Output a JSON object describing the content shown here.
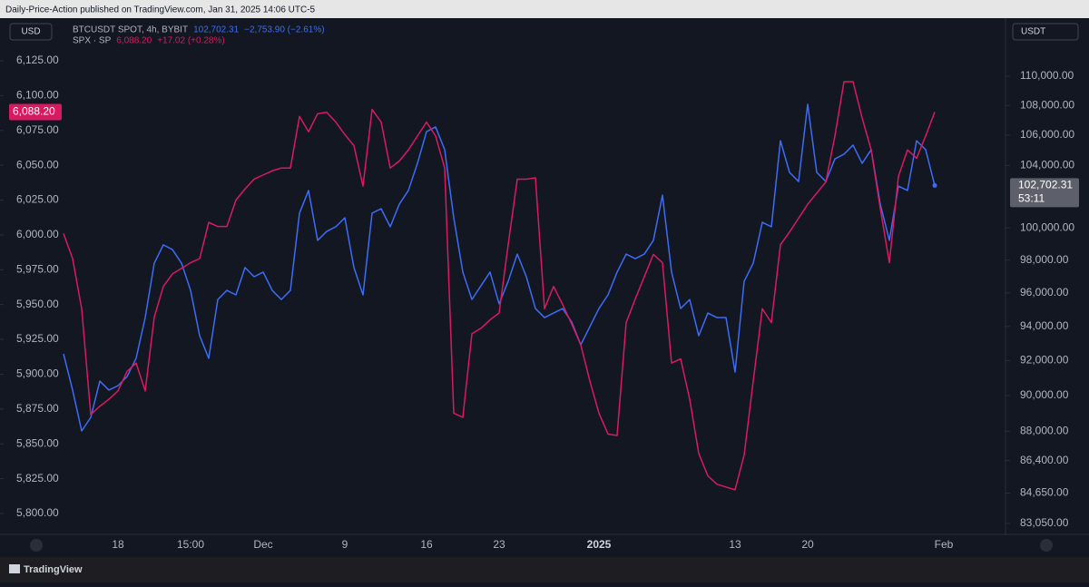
{
  "header": "Daily-Price-Action published on TradingView.com, Jan 31, 2025 14:06 UTC-5",
  "footer": "TradingView",
  "left_unit": "USD",
  "right_unit": "USDT",
  "chart_data": {
    "type": "line",
    "categories": [
      null,
      null,
      null,
      null,
      null,
      null,
      "18",
      null,
      null,
      null,
      null,
      null,
      null,
      null,
      "15:00",
      null,
      null,
      null,
      null,
      null,
      null,
      null,
      "Dec",
      null,
      null,
      null,
      null,
      null,
      null,
      null,
      null,
      "9",
      null,
      null,
      null,
      null,
      null,
      null,
      null,
      null,
      "16",
      null,
      null,
      null,
      null,
      null,
      null,
      null,
      "23",
      null,
      null,
      null,
      null,
      null,
      null,
      null,
      null,
      null,
      null,
      "2025",
      null,
      null,
      null,
      null,
      null,
      null,
      null,
      null,
      null,
      null,
      null,
      null,
      null,
      null,
      "13",
      null,
      null,
      null,
      null,
      null,
      null,
      null,
      "20",
      null,
      null,
      null,
      null,
      null,
      null,
      null,
      null,
      null,
      null,
      null,
      null,
      null,
      null,
      "Feb"
    ],
    "series": [
      {
        "name": "BTCUSDT SPOT, 4h, BYBIT",
        "color": "#3d6cf5",
        "axis": "y2",
        "last": "102,702.31",
        "change": "−2,753.90 (−2.61%)",
        "countdown": "53:11",
        "values": [
          92390,
          90310,
          88020,
          88770,
          90820,
          90310,
          90560,
          91080,
          92130,
          94520,
          97810,
          98940,
          98650,
          97810,
          96150,
          93450,
          92130,
          95600,
          96150,
          95880,
          97540,
          96980,
          97260,
          96150,
          95600,
          96150,
          100930,
          102380,
          99220,
          99780,
          100070,
          100640,
          97540,
          95880,
          100930,
          101210,
          100070,
          101500,
          102380,
          104140,
          106240,
          106550,
          105040,
          100640,
          97260,
          95600,
          96430,
          97260,
          95340,
          96700,
          98370,
          96980,
          95060,
          94520,
          94790,
          95060,
          94250,
          92920,
          93980,
          95060,
          95880,
          97260,
          98370,
          98090,
          98370,
          99220,
          102080,
          97260,
          95060,
          95600,
          93450,
          94790,
          94520,
          94520,
          91340,
          96700,
          97810,
          100350,
          100070,
          105630,
          103550,
          102960,
          108080,
          103550,
          102960,
          104430,
          104740,
          105340,
          104140,
          105040,
          101500,
          99220,
          102660,
          102380,
          105630,
          105040,
          102702.31,
          null
        ]
      },
      {
        "name": "SPX · SP",
        "color": "#d81b60",
        "last": "6,088.20",
        "change": "+17.02 (+0.28%)",
        "values": [
          6001,
          5983,
          5947,
          5871,
          5877,
          5882,
          5888,
          5902,
          5908,
          5888,
          5941,
          5963,
          5972,
          5976,
          5980,
          5983,
          6009,
          6006,
          6006,
          6025,
          6033,
          6040,
          6043,
          6046,
          6048,
          6048,
          6085,
          6074,
          6087,
          6088,
          6081,
          6072,
          6064,
          6035,
          6090,
          6081,
          6048,
          6053,
          6061,
          6071,
          6081,
          6071,
          6048,
          5872,
          5869,
          5929,
          5933,
          5939,
          5944,
          5993,
          6040,
          6040,
          6041,
          5947,
          5963,
          5950,
          5936,
          5921,
          5895,
          5872,
          5857,
          5856,
          5937,
          5954,
          5970,
          5986,
          5980,
          5908,
          5911,
          5882,
          5843,
          5827,
          5821,
          5819,
          5817,
          5842,
          5895,
          5947,
          5937,
          5993,
          6002,
          6012,
          6022,
          6030,
          6038,
          6071,
          6110,
          6110,
          6084,
          6061,
          6019,
          5980,
          6042,
          6061,
          6055,
          6071,
          6088.2,
          null
        ]
      }
    ],
    "ylim": [
      5787.6,
      6154.3
    ],
    "yticks": [
      {
        "value": 5800,
        "label": "5,800.00"
      },
      {
        "value": 5825,
        "label": "5,825.00"
      },
      {
        "value": 5850,
        "label": "5,850.00"
      },
      {
        "value": 5875,
        "label": "5,875.00"
      },
      {
        "value": 5900,
        "label": "5,900.00"
      },
      {
        "value": 5925,
        "label": "5,925.00"
      },
      {
        "value": 5950,
        "label": "5,950.00"
      },
      {
        "value": 5975,
        "label": "5,975.00"
      },
      {
        "value": 6000,
        "label": "6,000.00"
      },
      {
        "value": 6025,
        "label": "6,025.00"
      },
      {
        "value": 6050,
        "label": "6,050.00"
      },
      {
        "value": 6075,
        "label": "6,075.00"
      },
      {
        "value": 6100,
        "label": "6,100.00"
      },
      {
        "value": 6125,
        "label": "6,125.00"
      }
    ],
    "y2lim": [
      82670,
      113960
    ],
    "y2log": true,
    "y2ticks": [
      {
        "value": 83050,
        "label": "83,050.00"
      },
      {
        "value": 84650,
        "label": "84,650.00"
      },
      {
        "value": 86400,
        "label": "86,400.00"
      },
      {
        "value": 88000,
        "label": "88,000.00"
      },
      {
        "value": 90000,
        "label": "90,000.00"
      },
      {
        "value": 92000,
        "label": "92,000.00"
      },
      {
        "value": 94000,
        "label": "94,000.00"
      },
      {
        "value": 96000,
        "label": "96,000.00"
      },
      {
        "value": 98000,
        "label": "98,000.00"
      },
      {
        "value": 100000,
        "label": "100,000.00"
      },
      {
        "value": 104000,
        "label": "104,000.00"
      },
      {
        "value": 106000,
        "label": "106,000.00"
      },
      {
        "value": 108000,
        "label": "108,000.00"
      },
      {
        "value": 110000,
        "label": "110,000.00"
      }
    ],
    "grid": false
  }
}
